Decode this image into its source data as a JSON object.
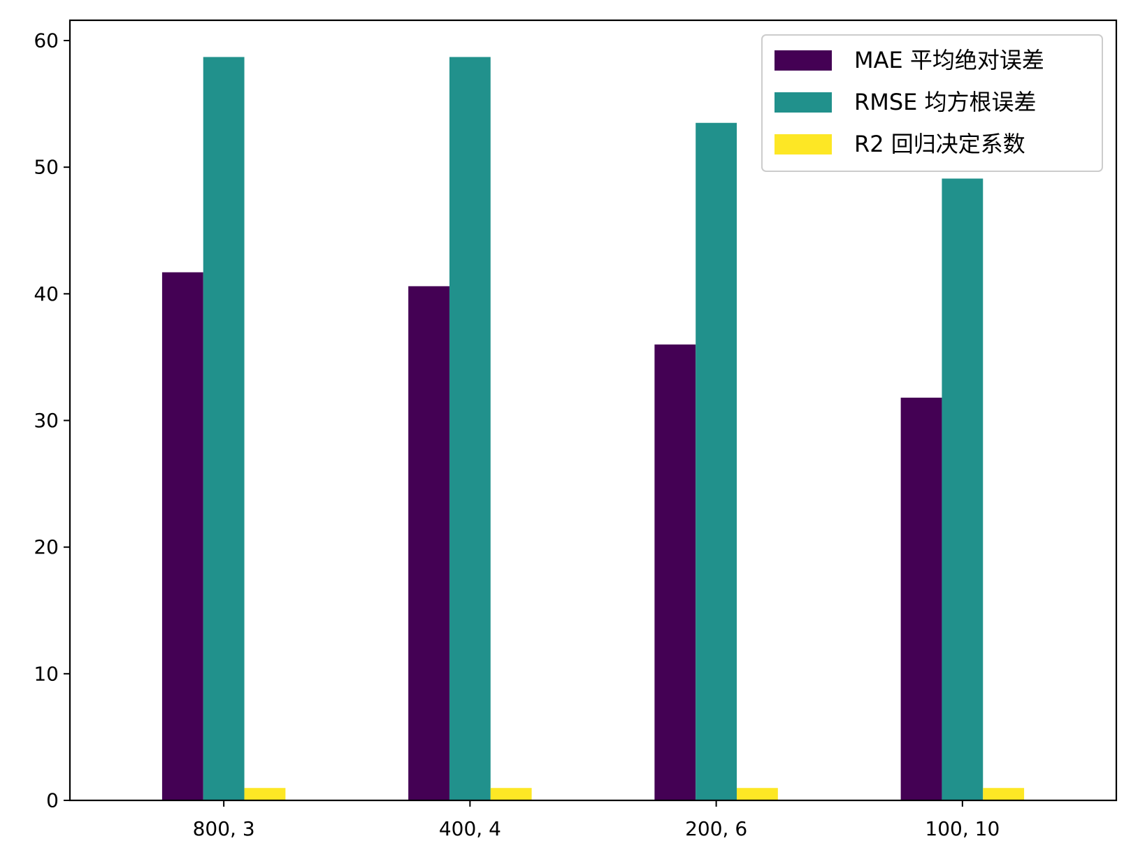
{
  "chart_data": {
    "type": "bar",
    "categories": [
      "800, 3",
      "400, 4",
      "200, 6",
      "100, 10"
    ],
    "series": [
      {
        "name": "MAE 平均绝对误差",
        "color": "#440154",
        "values": [
          41.7,
          40.6,
          36.0,
          31.8
        ]
      },
      {
        "name": "RMSE 均方根误差",
        "color": "#21918c",
        "values": [
          58.7,
          58.7,
          53.5,
          49.1
        ]
      },
      {
        "name": "R2 回归决定系数",
        "color": "#fde725",
        "values": [
          0.98,
          0.98,
          0.98,
          0.98
        ]
      }
    ],
    "y_ticks": [
      "0",
      "10",
      "20",
      "30",
      "40",
      "50",
      "60"
    ],
    "ylim": [
      0,
      61.6
    ],
    "grid": false,
    "legend_position": "top-right"
  }
}
